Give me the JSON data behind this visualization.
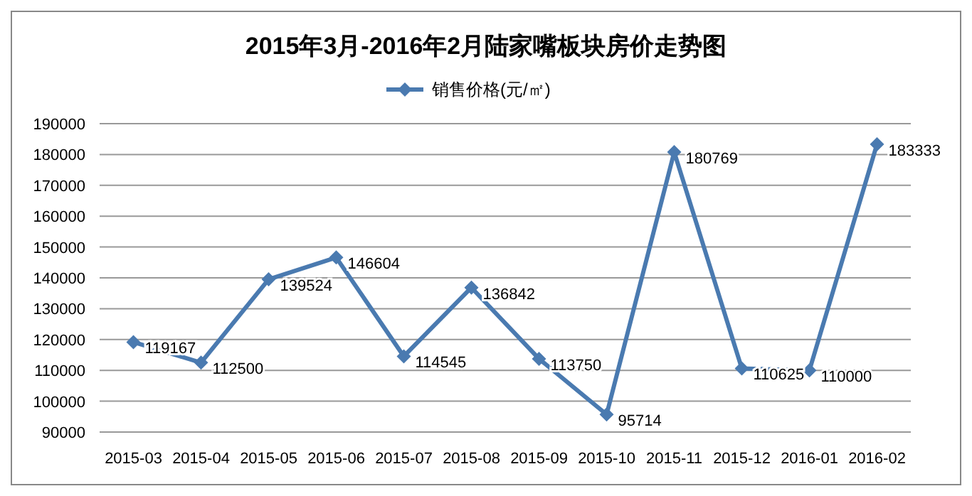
{
  "chart_data": {
    "type": "line",
    "title": "2015年3月-2016年2月陆家嘴板块房价走势图",
    "categories": [
      "2015-03",
      "2015-04",
      "2015-05",
      "2015-06",
      "2015-07",
      "2015-08",
      "2015-09",
      "2015-10",
      "2015-11",
      "2015-12",
      "2016-01",
      "2016-02"
    ],
    "series": [
      {
        "name": "销售价格(元/㎡)",
        "color": "#4a7ab0",
        "values": [
          119167,
          112500,
          139524,
          146604,
          114545,
          136842,
          113750,
          95714,
          180769,
          110625,
          110000,
          183333
        ]
      }
    ],
    "ylim": [
      90000,
      190000
    ],
    "yticks": [
      90000,
      100000,
      110000,
      120000,
      130000,
      140000,
      150000,
      160000,
      170000,
      180000,
      190000
    ],
    "grid": "y",
    "legend": "top",
    "marker": "diamond",
    "line_style": "solid",
    "data_labels": true
  }
}
